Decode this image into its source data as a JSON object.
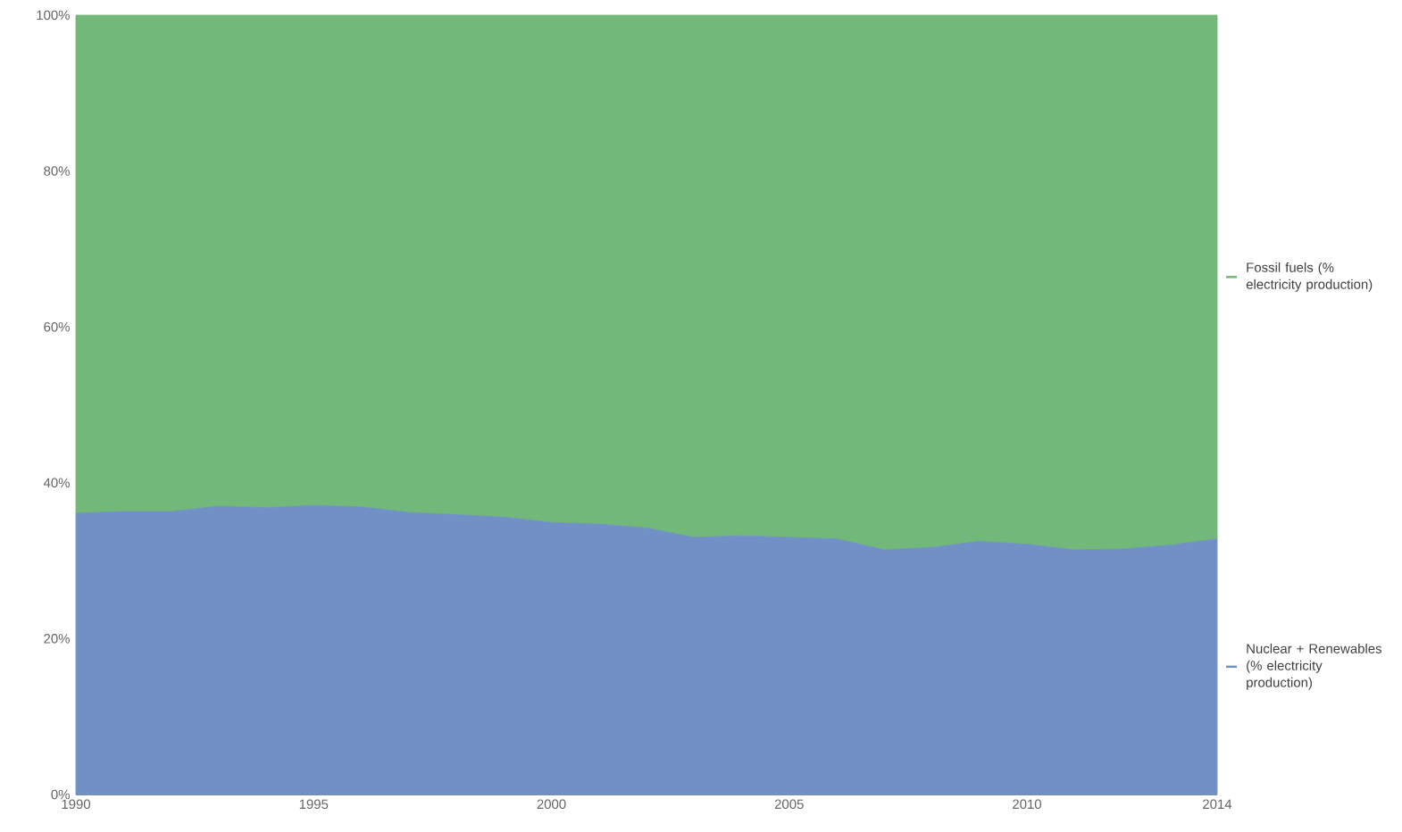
{
  "chart_data": {
    "type": "area",
    "stacked": true,
    "legend": "right",
    "x": [
      1990,
      1991,
      1992,
      1993,
      1994,
      1995,
      1996,
      1997,
      1998,
      1999,
      2000,
      2001,
      2002,
      2003,
      2004,
      2005,
      2006,
      2007,
      2008,
      2009,
      2010,
      2011,
      2012,
      2013,
      2014
    ],
    "series": [
      {
        "name": "Nuclear + Renewables (% electricity production)",
        "color": "#7190c5",
        "values": [
          36.1,
          36.3,
          36.3,
          37.0,
          36.8,
          37.1,
          36.9,
          36.2,
          35.9,
          35.6,
          34.9,
          34.7,
          34.2,
          33.0,
          33.2,
          33.0,
          32.8,
          31.4,
          31.7,
          32.5,
          32.1,
          31.4,
          31.5,
          32.0,
          32.8
        ]
      },
      {
        "name": "Fossil fuels (% electricity production)",
        "color": "#72b879",
        "values": [
          63.9,
          63.7,
          63.7,
          63.0,
          63.2,
          62.9,
          63.1,
          63.8,
          64.1,
          64.4,
          65.1,
          65.3,
          65.8,
          67.0,
          66.8,
          67.0,
          67.2,
          68.6,
          68.3,
          67.5,
          67.9,
          68.6,
          68.5,
          68.0,
          67.2
        ]
      }
    ],
    "xlim": [
      1990,
      2014
    ],
    "xticks": [
      1990,
      1995,
      2000,
      2005,
      2010,
      2014
    ],
    "ylim": [
      0,
      100
    ],
    "yticks": [
      {
        "value": 0,
        "label": "0%"
      },
      {
        "value": 20,
        "label": "20%"
      },
      {
        "value": 40,
        "label": "40%"
      },
      {
        "value": 60,
        "label": "60%"
      },
      {
        "value": 80,
        "label": "80%"
      },
      {
        "value": 100,
        "label": "100%"
      }
    ]
  }
}
